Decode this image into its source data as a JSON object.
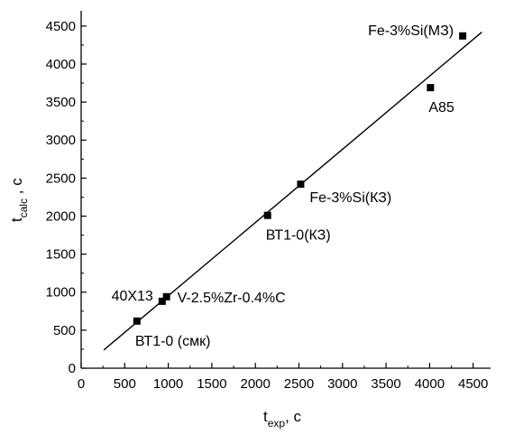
{
  "chart_data": {
    "type": "scatter",
    "xlabel": {
      "main": "t",
      "sub": "exp",
      "unit": ", с"
    },
    "ylabel": {
      "main": "t",
      "sub": "calc",
      "unit": " , с"
    },
    "xlim": [
      0,
      4700
    ],
    "ylim": [
      0,
      4700
    ],
    "xticks": [
      0,
      500,
      1000,
      1500,
      2000,
      2500,
      3000,
      3500,
      4000,
      4500
    ],
    "yticks": [
      0,
      500,
      1000,
      1500,
      2000,
      2500,
      3000,
      3500,
      4000,
      4500
    ],
    "minor_step": 250,
    "grid": false,
    "points": [
      {
        "x": 640,
        "y": 620,
        "label": "ВТ1-0 (смк)",
        "label_pos": "below-right"
      },
      {
        "x": 930,
        "y": 880,
        "label": "40Х13",
        "label_pos": "left"
      },
      {
        "x": 980,
        "y": 940,
        "label": "V-2.5%Zr-0.4%C",
        "label_pos": "right"
      },
      {
        "x": 2140,
        "y": 2010,
        "label": "ВТ1-0(КЗ)",
        "label_pos": "below-right"
      },
      {
        "x": 2520,
        "y": 2420,
        "label": "Fe-3%Si(КЗ)",
        "label_pos": "right-below"
      },
      {
        "x": 4010,
        "y": 3690,
        "label": "А85",
        "label_pos": "below-right"
      },
      {
        "x": 4380,
        "y": 4370,
        "label": "Fe-3%Si(МЗ)",
        "label_pos": "left"
      }
    ],
    "fit_line": {
      "x": [
        260,
        4600
      ],
      "y": [
        240,
        4420
      ]
    }
  }
}
